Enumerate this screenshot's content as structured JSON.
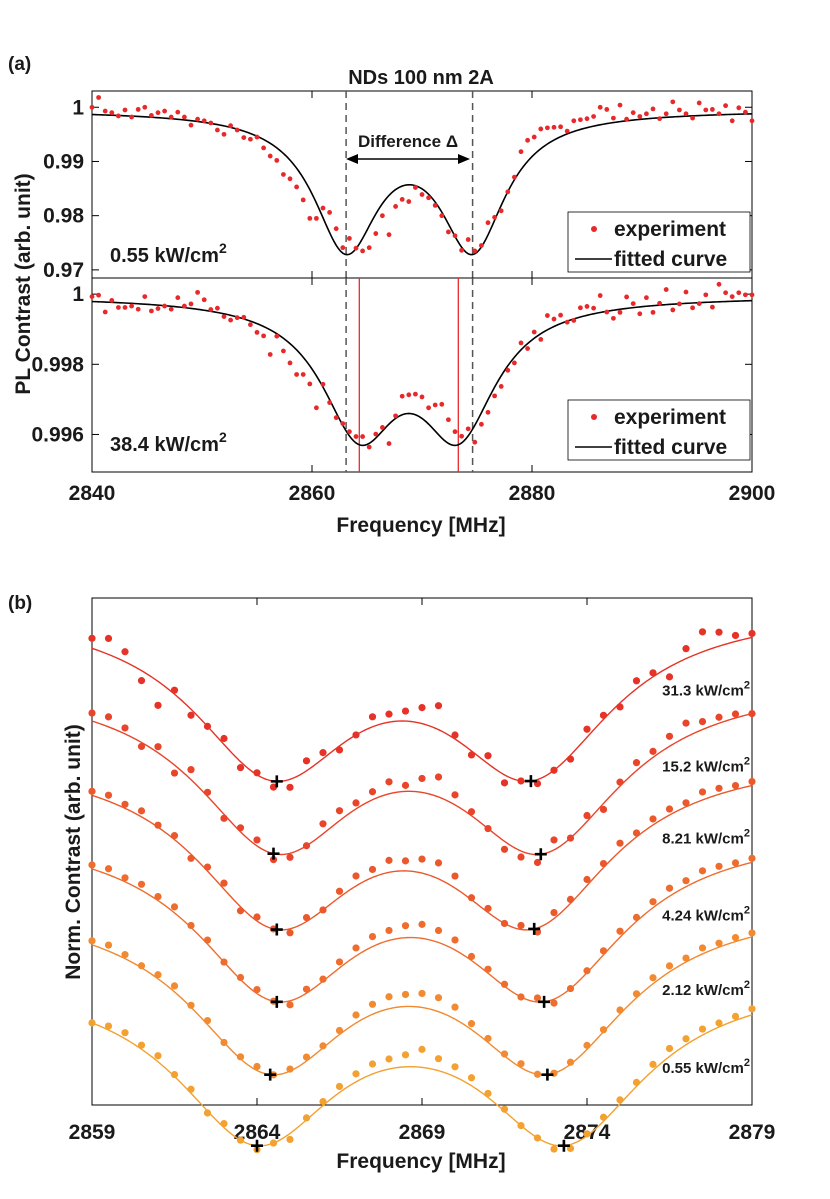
{
  "chart_data": [
    {
      "panel": "a",
      "panel_label": "(a)",
      "type": "scatter",
      "title": "NDs 100 nm 2A",
      "xlabel": "Frequency [MHz]",
      "ylabel": "PL Contrast (arb. unit)",
      "xlim": [
        2840,
        2900
      ],
      "xticks": [
        "2840",
        "2860",
        "2880",
        "2900"
      ],
      "annotation": "Difference Δ",
      "legend": [
        "experiment",
        "fitted curve"
      ],
      "dashed_lines_x": [
        2863.1,
        2874.6
      ],
      "colors": {
        "points": "#e8292b",
        "fit": "#000000",
        "markers_red": "#e8292b",
        "dashed": "#555555"
      },
      "subplots": [
        {
          "power_label": "0.55 kW/cm",
          "power_sup": "2",
          "ylim": [
            0.9685,
            1.003
          ],
          "yticks": [
            "0.97",
            "0.98",
            "0.99",
            "1"
          ],
          "fit": {
            "base": 0.9995,
            "dips": [
              {
                "center": 2863.1,
                "gamma": 3.6,
                "depth": 0.0245
              },
              {
                "center": 2874.6,
                "gamma": 3.6,
                "depth": 0.0245
              }
            ]
          },
          "points_x": [
            2840,
            2840.6,
            2841.2,
            2841.8,
            2842.4,
            2843,
            2843.6,
            2844.2,
            2844.8,
            2845.4,
            2846,
            2846.6,
            2847.2,
            2847.8,
            2848.4,
            2849,
            2849.6,
            2850.2,
            2850.8,
            2851.4,
            2852,
            2852.6,
            2853.2,
            2853.8,
            2854.4,
            2855,
            2855.6,
            2856.2,
            2856.8,
            2857.4,
            2858,
            2858.6,
            2859.2,
            2859.8,
            2860.4,
            2861,
            2861.6,
            2862.2,
            2862.8,
            2863.4,
            2864,
            2864.6,
            2865.2,
            2865.8,
            2866.4,
            2867,
            2867.6,
            2868.2,
            2868.8,
            2869.4,
            2870,
            2870.6,
            2871.2,
            2871.8,
            2872.4,
            2873,
            2873.6,
            2874.2,
            2874.8,
            2875.4,
            2876,
            2876.6,
            2877.2,
            2877.8,
            2878.4,
            2879,
            2879.6,
            2880.2,
            2880.8,
            2881.4,
            2882,
            2882.6,
            2883.2,
            2883.8,
            2884.4,
            2885,
            2885.6,
            2886.2,
            2886.8,
            2887.4,
            2888,
            2888.6,
            2889.2,
            2889.8,
            2890.4,
            2891,
            2891.6,
            2892.2,
            2892.8,
            2893.4,
            2894,
            2894.6,
            2895.2,
            2895.8,
            2896.4,
            2897,
            2897.6,
            2898.2,
            2898.8,
            2899.4,
            2900
          ],
          "points_y": [
            1.0,
            1.0018,
            0.9993,
            0.999,
            0.9984,
            0.9995,
            0.9982,
            0.9996,
            1.0,
            0.9985,
            0.999,
            0.9993,
            0.9982,
            0.9991,
            0.9982,
            0.9967,
            0.9978,
            0.9975,
            0.9971,
            0.9958,
            0.995,
            0.9966,
            0.9958,
            0.9944,
            0.9941,
            0.9945,
            0.9925,
            0.991,
            0.9902,
            0.9876,
            0.9868,
            0.9853,
            0.9829,
            0.9795,
            0.9795,
            0.9814,
            0.9806,
            0.9776,
            0.9741,
            0.9758,
            0.974,
            0.9735,
            0.9741,
            0.9767,
            0.98,
            0.9765,
            0.9817,
            0.983,
            0.9826,
            0.9852,
            0.9839,
            0.9833,
            0.9819,
            0.98,
            0.977,
            0.9763,
            0.9736,
            0.9756,
            0.9735,
            0.9745,
            0.9787,
            0.9797,
            0.9809,
            0.9844,
            0.9871,
            0.9918,
            0.9939,
            0.9945,
            0.996,
            0.9962,
            0.9963,
            0.9964,
            0.9956,
            0.9975,
            0.9977,
            0.9979,
            0.9983,
            1.0,
            0.9996,
            0.998,
            1.0004,
            0.9978,
            0.999,
            0.9983,
            0.9988,
            0.9997,
            0.9979,
            0.9988,
            1.001,
            0.9995,
            0.9988,
            0.998,
            1.0008,
            0.9995,
            0.9996,
            0.9988,
            1.0003,
            0.9975,
            0.9999,
            0.9991,
            0.9975,
            1.0034
          ]
        },
        {
          "power_label": "38.4 kW/cm",
          "power_sup": "2",
          "ylim": [
            0.99493,
            1.00046
          ],
          "yticks": [
            "0.996",
            "0.998",
            "1"
          ],
          "red_lines_x": [
            2864.3,
            2873.3
          ],
          "fit": {
            "base": 0.99995,
            "dips": [
              {
                "center": 2864.3,
                "gamma": 4.2,
                "depth": 0.0036
              },
              {
                "center": 2873.3,
                "gamma": 4.2,
                "depth": 0.0036
              }
            ]
          },
          "points_x": [
            2840,
            2840.6,
            2841.2,
            2841.8,
            2842.4,
            2843,
            2843.6,
            2844.2,
            2844.8,
            2845.4,
            2846,
            2846.6,
            2847.2,
            2847.8,
            2848.4,
            2849,
            2849.6,
            2850.2,
            2850.8,
            2851.4,
            2852,
            2852.6,
            2853.2,
            2853.8,
            2854.4,
            2855,
            2855.6,
            2856.2,
            2856.8,
            2857.4,
            2858,
            2858.6,
            2859.2,
            2859.8,
            2860.4,
            2861,
            2861.6,
            2862.2,
            2862.8,
            2863.4,
            2864,
            2864.6,
            2865.2,
            2865.8,
            2866.4,
            2867,
            2867.6,
            2868.2,
            2868.8,
            2869.4,
            2870,
            2870.6,
            2871.2,
            2871.8,
            2872.4,
            2873,
            2873.6,
            2874.2,
            2874.8,
            2875.4,
            2876,
            2876.6,
            2877.2,
            2877.8,
            2878.4,
            2879,
            2879.6,
            2880.2,
            2880.8,
            2881.4,
            2882,
            2882.6,
            2883.2,
            2883.8,
            2884.4,
            2885,
            2885.6,
            2886.2,
            2886.8,
            2887.4,
            2888,
            2888.6,
            2889.2,
            2889.8,
            2890.4,
            2891,
            2891.6,
            2892.2,
            2892.8,
            2893.4,
            2894,
            2894.6,
            2895.2,
            2895.8,
            2896.4,
            2897,
            2897.6,
            2898.2,
            2898.8,
            2899.4,
            2900
          ],
          "points_y": [
            0.99993,
            0.99997,
            0.99949,
            0.99982,
            0.99962,
            0.99962,
            0.99966,
            0.99957,
            0.99993,
            0.99952,
            0.99959,
            0.99966,
            0.99957,
            0.9999,
            0.99966,
            0.99972,
            1.00005,
            0.99984,
            0.99956,
            0.9996,
            0.99936,
            0.99926,
            0.99933,
            0.99934,
            0.99913,
            0.99891,
            0.99881,
            0.99828,
            0.9988,
            0.99838,
            0.99804,
            0.99771,
            0.99771,
            0.99744,
            0.99676,
            0.99743,
            0.99691,
            0.99648,
            0.99631,
            0.99608,
            0.99594,
            0.99594,
            0.99564,
            0.99601,
            0.9962,
            0.99574,
            0.99653,
            0.99709,
            0.99713,
            0.99715,
            0.99707,
            0.99676,
            0.99684,
            0.99686,
            0.99642,
            0.99608,
            0.99595,
            0.99616,
            0.99578,
            0.99629,
            0.99663,
            0.9971,
            0.99737,
            0.99783,
            0.99804,
            0.99861,
            0.99845,
            0.99892,
            0.99871,
            0.99939,
            0.99929,
            0.9994,
            0.9992,
            0.99925,
            0.99961,
            0.99965,
            0.9996,
            0.99996,
            0.99949,
            0.99931,
            0.99948,
            0.99992,
            0.99973,
            0.99944,
            0.9999,
            0.99948,
            0.99974,
            1.00013,
            0.99955,
            0.99972,
            1.00006,
            0.99961,
            0.99973,
            0.99998,
            0.99963,
            1.00028,
            1.00004,
            0.99993,
            1.00004,
            0.99998,
            0.99998,
            1.00013
          ]
        }
      ]
    },
    {
      "panel": "b",
      "panel_label": "(b)",
      "type": "scatter",
      "xlabel": "Frequency [MHz]",
      "ylabel": "Norm. Contrast (arb. unit)",
      "xlim": [
        2859,
        2879
      ],
      "xticks": [
        "2859",
        "2864",
        "2869",
        "2874",
        "2879"
      ],
      "unit_sup": "2",
      "series": [
        {
          "label": "31.3 kW/cm",
          "color": "#e63227",
          "offset": 0,
          "fit": {
            "base": 1.0,
            "c1": 2864.5,
            "c2": 2872.3,
            "gamma": 3.0,
            "depth": 0.78
          },
          "minima_x": [
            2864.6,
            2872.3
          ]
        },
        {
          "label": "15.2 kW/cm",
          "color": "#e9452a",
          "offset": 0.37,
          "fit": {
            "base": 1.0,
            "c1": 2864.6,
            "c2": 2872.6,
            "gamma": 3.0,
            "depth": 0.78
          },
          "minima_x": [
            2864.5,
            2872.6
          ]
        },
        {
          "label": "8.21 kW/cm",
          "color": "#eb582c",
          "offset": 0.74,
          "fit": {
            "base": 1.0,
            "c1": 2864.6,
            "c2": 2872.3,
            "gamma": 3.0,
            "depth": 0.78
          },
          "minima_x": [
            2864.6,
            2872.4
          ]
        },
        {
          "label": "4.24 kW/cm",
          "color": "#ee6d2e",
          "offset": 1.11,
          "fit": {
            "base": 1.0,
            "c1": 2864.6,
            "c2": 2872.7,
            "gamma": 3.0,
            "depth": 0.78
          },
          "minima_x": [
            2864.6,
            2872.7
          ]
        },
        {
          "label": "2.12 kW/cm",
          "color": "#f18a30",
          "offset": 1.48,
          "fit": {
            "base": 1.0,
            "c1": 2864.4,
            "c2": 2872.8,
            "gamma": 3.0,
            "depth": 0.78
          },
          "minima_x": [
            2864.4,
            2872.8
          ]
        },
        {
          "label": "0.55 kW/cm",
          "color": "#f3a130",
          "offset": 1.85,
          "fit": {
            "base": 1.0,
            "c1": 2864.0,
            "c2": 2873.3,
            "gamma": 3.0,
            "depth": 0.78
          },
          "minima_x": [
            2864.0,
            2873.3
          ]
        }
      ],
      "points_x": [
        2859,
        2859.5,
        2860,
        2860.5,
        2861,
        2861.5,
        2862,
        2862.5,
        2863,
        2863.5,
        2864,
        2864.5,
        2865,
        2865.5,
        2866,
        2866.5,
        2867,
        2867.5,
        2868,
        2868.5,
        2869,
        2869.5,
        2870,
        2870.5,
        2871,
        2871.5,
        2872,
        2872.5,
        2873,
        2873.5,
        2874,
        2874.5,
        2875,
        2875.5,
        2876,
        2876.5,
        2877,
        2877.5,
        2878,
        2878.5,
        2879
      ],
      "points_resid": [
        [
          0.05,
          0.08,
          0.05,
          -0.05,
          -0.12,
          0.02,
          -0.03,
          0.0,
          0.03,
          -0.03,
          0.01,
          -0.03,
          -0.04,
          0.05,
          0.03,
          -0.02,
          0.0,
          0.05,
          0.04,
          0.05,
          0.08,
          0.12,
          0.02,
          -0.02,
          0.04,
          -0.04,
          0.0,
          -0.02,
          0.0,
          -0.02,
          0.04,
          0.02,
          -0.02,
          0.04,
          0.02,
          -0.05,
          0.05,
          0.1,
          0.07,
          0.03,
          0.02
        ],
        [
          0.04,
          0.05,
          0.03,
          -0.02,
          0.03,
          -0.04,
          0.05,
          0.02,
          -0.02,
          0.02,
          0.03,
          -0.03,
          -0.02,
          0.0,
          0.05,
          0.05,
          0.03,
          0.04,
          0.06,
          0.03,
          0.07,
          0.1,
          0.05,
          0.02,
          0.0,
          -0.04,
          -0.03,
          -0.04,
          0.05,
          0.0,
          0.03,
          -0.03,
          0.02,
          0.04,
          0.03,
          0.05,
          0.07,
          0.04,
          0.03,
          0.02,
          0.0
        ],
        [
          0.02,
          0.03,
          0.02,
          0.03,
          0.01,
          0.02,
          -0.02,
          0.02,
          0.03,
          -0.02,
          0.02,
          0.0,
          -0.02,
          0.02,
          0.0,
          0.03,
          0.05,
          0.04,
          0.06,
          0.05,
          0.07,
          0.08,
          0.06,
          0.01,
          0.02,
          0.0,
          0.02,
          -0.02,
          0.03,
          0.02,
          0.03,
          0.02,
          0.04,
          0.02,
          0.03,
          0.03,
          0.02,
          0.04,
          0.03,
          0.02,
          0.02
        ],
        [
          0.02,
          0.03,
          0.02,
          0.03,
          0.02,
          0.03,
          0.01,
          0.02,
          0.0,
          0.01,
          0.02,
          0.0,
          -0.02,
          0.02,
          0.01,
          0.03,
          0.04,
          0.05,
          0.05,
          0.06,
          0.07,
          0.06,
          0.05,
          0.02,
          0.02,
          0.01,
          0.0,
          0.02,
          -0.02,
          0.0,
          0.01,
          0.02,
          0.03,
          0.02,
          0.03,
          0.04,
          0.03,
          0.04,
          0.03,
          0.02,
          0.02
        ],
        [
          0.02,
          0.03,
          0.02,
          0.01,
          0.02,
          0.03,
          0.01,
          0.02,
          0.0,
          0.01,
          0.02,
          0.0,
          0.01,
          0.02,
          0.01,
          0.02,
          0.04,
          0.05,
          0.06,
          0.06,
          0.07,
          0.07,
          0.06,
          0.03,
          0.02,
          0.01,
          0.02,
          0.0,
          0.0,
          0.01,
          0.02,
          0.01,
          0.02,
          0.02,
          0.03,
          0.03,
          0.02,
          0.03,
          0.02,
          0.02,
          0.02
        ],
        [
          0.0,
          0.02,
          0.03,
          0.02,
          0.03,
          0.01,
          0.02,
          -0.01,
          0.02,
          0.0,
          -0.02,
          0.0,
          -0.03,
          0.01,
          0.02,
          0.03,
          0.04,
          0.05,
          0.05,
          0.06,
          0.09,
          0.06,
          0.05,
          0.04,
          0.02,
          0.01,
          0.0,
          0.0,
          -0.02,
          -0.02,
          0.01,
          0.02,
          0.02,
          0.02,
          0.03,
          0.04,
          0.03,
          0.03,
          0.02,
          0.02,
          0.03
        ]
      ]
    }
  ]
}
